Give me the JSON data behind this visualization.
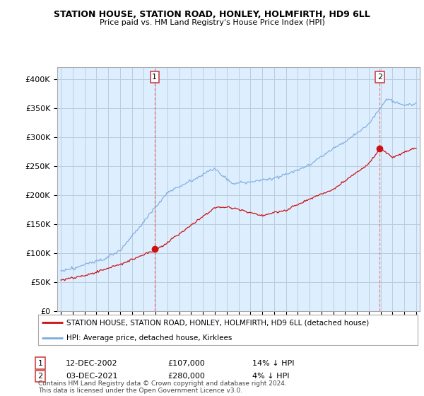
{
  "title": "STATION HOUSE, STATION ROAD, HONLEY, HOLMFIRTH, HD9 6LL",
  "subtitle": "Price paid vs. HM Land Registry's House Price Index (HPI)",
  "legend_line1": "STATION HOUSE, STATION ROAD, HONLEY, HOLMFIRTH, HD9 6LL (detached house)",
  "legend_line2": "HPI: Average price, detached house, Kirklees",
  "transaction1_label": "1",
  "transaction1_date": "12-DEC-2002",
  "transaction1_price": "£107,000",
  "transaction1_hpi": "14% ↓ HPI",
  "transaction2_label": "2",
  "transaction2_date": "03-DEC-2021",
  "transaction2_price": "£280,000",
  "transaction2_hpi": "4% ↓ HPI",
  "footer": "Contains HM Land Registry data © Crown copyright and database right 2024.\nThis data is licensed under the Open Government Licence v3.0.",
  "hpi_color": "#7aaadd",
  "price_color": "#cc1111",
  "vline_color": "#ee6666",
  "background_color": "#ffffff",
  "chart_bg_color": "#ddeeff",
  "grid_color": "#bbccdd",
  "ylim": [
    0,
    420000
  ],
  "yticks": [
    0,
    50000,
    100000,
    150000,
    200000,
    250000,
    300000,
    350000,
    400000
  ],
  "ytick_labels": [
    "£0",
    "£50K",
    "£100K",
    "£150K",
    "£200K",
    "£250K",
    "£300K",
    "£350K",
    "£400K"
  ],
  "transaction1_year": 2002.92,
  "transaction1_value": 107000,
  "transaction2_year": 2021.92,
  "transaction2_value": 280000,
  "xlim_left": 1994.7,
  "xlim_right": 2025.3
}
